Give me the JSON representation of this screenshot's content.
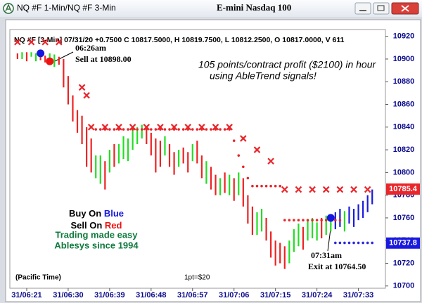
{
  "window_title": "NQ #F 1-Min/NQ #F 3-Min",
  "chart_data": {
    "type": "ohlc",
    "title": "E-mini Nasdaq 100",
    "subtitle": "NQ #F [3-Min] 07/31/20 +0.7500 C 10817.5000, H 10819.7500, L 10812.2500, O 10817.0000, V 611",
    "categories": [
      null,
      null,
      "31/06:21",
      null,
      null,
      null,
      null,
      null,
      null,
      null,
      null,
      "31/06:30",
      null,
      null,
      null,
      null,
      null,
      null,
      null,
      null,
      "31/06:39",
      null,
      null,
      null,
      null,
      null,
      null,
      null,
      null,
      "31/06:48",
      null,
      null,
      null,
      null,
      null,
      null,
      null,
      null,
      "31/06:57",
      null,
      null,
      null,
      null,
      null,
      null,
      null,
      null,
      "31/07:06",
      null,
      null,
      null,
      null,
      null,
      null,
      null,
      null,
      "31/07:15",
      null,
      null,
      null,
      null,
      null,
      null,
      null,
      null,
      "31/07:24",
      null,
      null,
      null,
      null,
      null,
      null,
      null,
      null,
      "31/07:33",
      null,
      null,
      null
    ],
    "high": [
      10905,
      10906,
      10906,
      10906,
      10905,
      10904,
      10903,
      10905,
      10904,
      10902,
      10900,
      10885,
      10868,
      10855,
      10850,
      10840,
      10830,
      10815,
      10815,
      10810,
      10820,
      10825,
      10825,
      10832,
      10830,
      10838,
      10840,
      10842,
      10840,
      10835,
      10830,
      10828,
      10832,
      10825,
      10818,
      10820,
      10822,
      10818,
      10825,
      10828,
      10815,
      10810,
      10805,
      10798,
      10795,
      10800,
      10798,
      10795,
      10800,
      10795,
      10780,
      10770,
      10765,
      10768,
      10760,
      10748,
      10740,
      10738,
      10735,
      10740,
      10750,
      10755,
      10752,
      10758,
      10760,
      10756,
      10760,
      10762,
      10760,
      10765,
      10768,
      10766,
      10770,
      10768,
      10772,
      10775,
      10780,
      10785
    ],
    "low": [
      10900,
      10900,
      10898,
      10902,
      10898,
      10899,
      10897,
      10898,
      10893,
      10895,
      10875,
      10860,
      10845,
      10835,
      10825,
      10805,
      10800,
      10795,
      10790,
      10785,
      10800,
      10805,
      10808,
      10812,
      10810,
      10820,
      10825,
      10830,
      10825,
      10815,
      10800,
      10805,
      10815,
      10805,
      10798,
      10805,
      10808,
      10800,
      10810,
      10808,
      10795,
      10790,
      10785,
      10780,
      10780,
      10782,
      10780,
      10775,
      10780,
      10770,
      10755,
      10745,
      10745,
      10748,
      10740,
      10725,
      10718,
      10720,
      10715,
      10720,
      10730,
      10735,
      10732,
      10740,
      10742,
      10740,
      10742,
      10745,
      10748,
      10750,
      10752,
      10748,
      10755,
      10752,
      10758,
      10760,
      10765,
      10772
    ],
    "colors": [
      "#ee2222",
      "#22dd22",
      "#ee2222",
      "#22dd22",
      "#22dd22",
      "#ee2222",
      "#ee2222",
      "#22dd22",
      "#22dd22",
      "#ee2222",
      "#ee2222",
      "#ee2222",
      "#ee2222",
      "#ee2222",
      "#ee2222",
      "#ee2222",
      "#ee2222",
      "#22dd22",
      "#22dd22",
      "#ee2222",
      "#22dd22",
      "#ee2222",
      "#22dd22",
      "#22dd22",
      "#22dd22",
      "#22dd22",
      "#22dd22",
      "#22dd22",
      "#ee2222",
      "#ee2222",
      "#ee2222",
      "#ee2222",
      "#22dd22",
      "#ee2222",
      "#ee2222",
      "#22dd22",
      "#ee2222",
      "#ee2222",
      "#22dd22",
      "#ee2222",
      "#ee2222",
      "#22dd22",
      "#ee2222",
      "#ee2222",
      "#22dd22",
      "#ee2222",
      "#22dd22",
      "#ee2222",
      "#22dd22",
      "#ee2222",
      "#ee2222",
      "#ee2222",
      "#22dd22",
      "#22dd22",
      "#ee2222",
      "#ee2222",
      "#ee2222",
      "#ee2222",
      "#ee2222",
      "#22dd22",
      "#22dd22",
      "#22dd22",
      "#ee2222",
      "#22dd22",
      "#22dd22",
      "#22dd22",
      "#ee2222",
      "#22dd22",
      "#22dd22",
      "#1a1adf",
      "#1a1adf",
      "#22dd22",
      "#1a1adf",
      "#1a1adf",
      "#1a1adf",
      "#1a1adf",
      "#1a1adf",
      "#1a1adf"
    ],
    "overlays": [
      {
        "style": "x",
        "color": "#e8262b",
        "values": [
          10915,
          null,
          null,
          10915,
          null,
          null,
          10915,
          null,
          null,
          10915,
          null,
          null,
          null,
          null,
          10875,
          10868,
          10840,
          null,
          null,
          10840,
          null,
          null,
          10840,
          null,
          null,
          10840,
          null,
          null,
          10840,
          null,
          null,
          10840,
          null,
          null,
          10840,
          null,
          null,
          10840,
          null,
          null,
          10840,
          null,
          null,
          10840,
          null,
          null,
          10840,
          null,
          null,
          10830,
          null,
          null,
          10820,
          null,
          null,
          10810,
          null,
          null,
          10785,
          null,
          null,
          10785,
          null,
          null,
          10785,
          null,
          null,
          10785,
          null,
          null,
          10785,
          null,
          null,
          10785,
          null,
          null,
          10785,
          null
        ]
      },
      {
        "style": "dot",
        "color": "#e8262b",
        "values": [
          null,
          null,
          null,
          null,
          null,
          null,
          null,
          null,
          null,
          null,
          null,
          null,
          null,
          null,
          null,
          null,
          null,
          10838,
          10838,
          10838,
          10838,
          10838,
          10838,
          10838,
          10838,
          10838,
          10838,
          10838,
          10838,
          10838,
          10838,
          10838,
          10838,
          10838,
          10838,
          10838,
          10838,
          10838,
          10838,
          10838,
          10838,
          10838,
          10838,
          10838,
          10838,
          10838,
          10838,
          10828,
          10815,
          10805,
          10795,
          10788,
          10788,
          10788,
          10788,
          10788,
          10788,
          10788,
          10758,
          10758,
          10758,
          10758,
          10758,
          10758,
          10758,
          10758,
          10758,
          10758,
          10758,
          10758,
          10758,
          null,
          null,
          null,
          null,
          null,
          null,
          null
        ]
      },
      {
        "style": "dot",
        "color": "#2a2adf",
        "values": [
          null,
          null,
          null,
          null,
          null,
          null,
          null,
          null,
          null,
          null,
          null,
          null,
          null,
          null,
          null,
          null,
          null,
          null,
          null,
          null,
          null,
          null,
          null,
          null,
          null,
          null,
          null,
          null,
          null,
          null,
          null,
          null,
          null,
          null,
          null,
          null,
          null,
          null,
          null,
          null,
          null,
          null,
          null,
          null,
          null,
          null,
          null,
          null,
          null,
          null,
          null,
          null,
          null,
          null,
          null,
          null,
          null,
          null,
          null,
          null,
          null,
          null,
          null,
          null,
          null,
          null,
          null,
          null,
          null,
          10738,
          10738,
          10738,
          10738,
          10738,
          10738,
          10738,
          10738,
          10738
        ]
      },
      {
        "style": "signal",
        "color": "#1515e0",
        "values": [
          null,
          null,
          null,
          null,
          null,
          10905,
          null,
          null,
          null,
          null,
          null,
          null,
          null,
          null,
          null,
          null,
          null,
          null,
          null,
          null,
          null,
          null,
          null,
          null,
          null,
          null,
          null,
          null,
          null,
          null,
          null,
          null,
          null,
          null,
          null,
          null,
          null,
          null,
          null,
          null,
          null,
          null,
          null,
          null,
          null,
          null,
          null,
          null,
          null,
          null,
          null,
          null,
          null,
          null,
          null,
          null,
          null,
          null,
          null,
          null,
          null,
          null,
          null,
          null,
          null,
          null,
          null,
          null,
          10760,
          null,
          null,
          null,
          null,
          null,
          null,
          null,
          null,
          null
        ]
      },
      {
        "style": "signal",
        "color": "#ee1111",
        "values": [
          null,
          null,
          null,
          null,
          null,
          null,
          null,
          10898,
          null,
          null,
          null,
          null,
          null,
          null,
          null,
          null,
          null,
          null,
          null,
          null,
          null,
          null,
          null,
          null,
          null,
          null,
          null,
          null,
          null,
          null,
          null,
          null,
          null,
          null,
          null,
          null,
          null,
          null,
          null,
          null,
          null,
          null,
          null,
          null,
          null,
          null,
          null,
          null,
          null,
          null,
          null,
          null,
          null,
          null,
          null,
          null,
          null,
          null,
          null,
          null,
          null,
          null,
          null,
          null,
          null,
          null,
          null,
          null,
          null,
          null,
          null,
          null,
          null,
          null,
          null,
          null,
          null,
          null
        ]
      }
    ],
    "price_tags": [
      {
        "value": 10785.4,
        "color": "#e8262b"
      },
      {
        "value": 10737.8,
        "color": "#1a1adf"
      }
    ],
    "ylim": [
      10698,
      10926
    ],
    "yticks": [
      10700,
      10720,
      10740,
      10760,
      10780,
      10800,
      10820,
      10840,
      10860,
      10880,
      10900,
      10920
    ],
    "grid": false,
    "annotations": {
      "sell_time": "06:26am",
      "sell_price": "Sell at 10898.00",
      "profit_1": "105 points/contract profit ($2100) in hour",
      "profit_2": "using AbleTrend signals!",
      "buy_a": "Buy On ",
      "buy_b": "Blue",
      "sell_a": "Sell On ",
      "sell_b": "Red",
      "slogan_1": "Trading made easy",
      "slogan_2": "Ablesys since 1994",
      "exit_time": "07:31am",
      "exit_price": "Exit at 10764.50",
      "timezone": "(Pacific Time)",
      "point_value": "1pt=$20"
    }
  }
}
